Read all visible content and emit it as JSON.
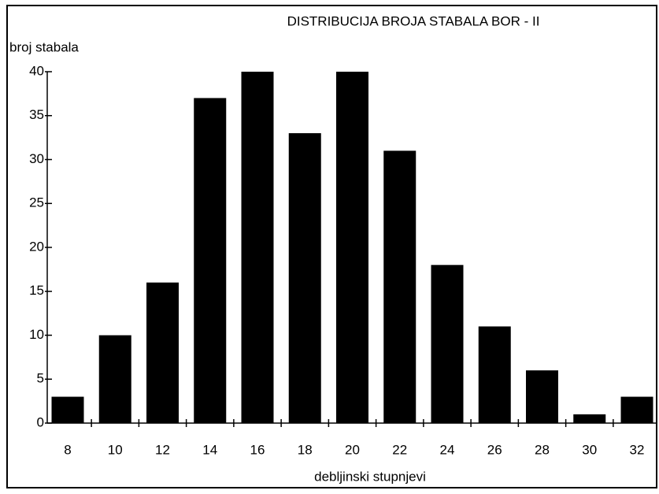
{
  "chart_data": {
    "type": "bar",
    "title": "DISTRIBUCIJA BROJA STABALA BOR - II",
    "y_label": "broj stabala",
    "x_label": "debljinski stupnjevi",
    "categories": [
      "8",
      "10",
      "12",
      "14",
      "16",
      "18",
      "20",
      "22",
      "24",
      "26",
      "28",
      "30",
      "32"
    ],
    "values": [
      3,
      10,
      16,
      37,
      40,
      33,
      40,
      31,
      18,
      11,
      6,
      1,
      3
    ],
    "color": "#000000",
    "ylim": [
      0,
      40
    ],
    "yticks": [
      0,
      5,
      10,
      15,
      20,
      25,
      30,
      35,
      40
    ],
    "grid": false
  }
}
